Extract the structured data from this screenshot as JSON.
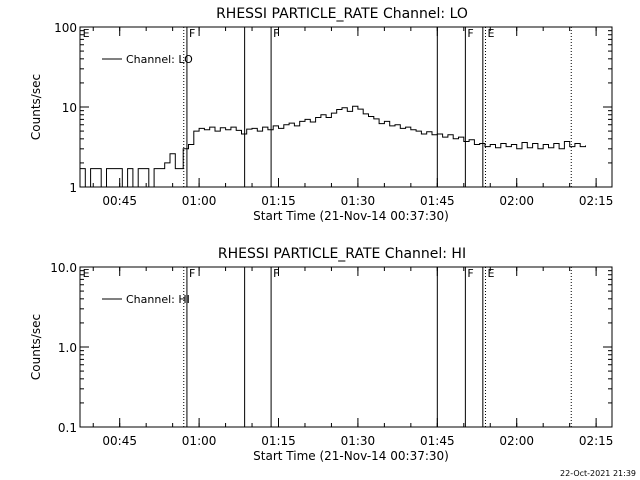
{
  "chart_data": [
    {
      "type": "line",
      "title": "RHESSI PARTICLE_RATE Channel: LO",
      "xlabel": "Start Time (21-Nov-14 00:37:30)",
      "ylabel": "Counts/sec",
      "y_scale": "log",
      "ylim": [
        1,
        100
      ],
      "xlim": [
        "00:37:30",
        "02:18:00"
      ],
      "yticks": [
        "1",
        "10",
        "100"
      ],
      "xticks": [
        "00:45",
        "01:00",
        "01:15",
        "01:30",
        "01:45",
        "02:00",
        "02:15"
      ],
      "legend": "top-left",
      "series": [
        {
          "name": "Channel: LO",
          "x": [
            "00:37:30",
            "00:38:30",
            "00:39:30",
            "00:40:30",
            "00:41:30",
            "00:42:30",
            "00:43:30",
            "00:44:30",
            "00:45:30",
            "00:46:30",
            "00:47:30",
            "00:48:30",
            "00:49:30",
            "00:50:30",
            "00:51:30",
            "00:52:30",
            "00:53:30",
            "00:54:30",
            "00:55:30",
            "00:56:30",
            "00:57:00",
            "00:58:00",
            "00:59:00",
            "01:00:00",
            "01:01:00",
            "01:02:00",
            "01:03:00",
            "01:04:00",
            "01:05:00",
            "01:06:00",
            "01:07:00",
            "01:08:00",
            "01:09:00",
            "01:10:00",
            "01:11:00",
            "01:12:00",
            "01:13:00",
            "01:14:00",
            "01:15:00",
            "01:16:00",
            "01:17:00",
            "01:18:00",
            "01:19:00",
            "01:20:00",
            "01:21:00",
            "01:22:00",
            "01:23:00",
            "01:24:00",
            "01:25:00",
            "01:26:00",
            "01:27:00",
            "01:28:00",
            "01:29:00",
            "01:30:00",
            "01:31:00",
            "01:32:00",
            "01:33:00",
            "01:34:00",
            "01:35:00",
            "01:36:00",
            "01:37:00",
            "01:38:00",
            "01:39:00",
            "01:40:00",
            "01:41:00",
            "01:42:00",
            "01:43:00",
            "01:44:00",
            "01:45:00",
            "01:46:00",
            "01:47:00",
            "01:48:00",
            "01:49:00",
            "01:50:00",
            "01:51:00",
            "01:52:00",
            "01:53:00",
            "01:54:00",
            "01:55:00",
            "01:56:00",
            "01:57:00",
            "01:58:00",
            "01:59:00",
            "02:00:00",
            "02:01:00",
            "02:02:00",
            "02:03:00",
            "02:04:00",
            "02:05:00",
            "02:06:00",
            "02:07:00",
            "02:08:00",
            "02:09:00",
            "02:10:00",
            "02:11:00",
            "02:12:00",
            "02:13:00"
          ],
          "values": [
            1.7,
            1.0,
            1.7,
            1.7,
            1.0,
            1.7,
            1.7,
            1.7,
            1.0,
            1.7,
            1.0,
            1.7,
            1.7,
            1.0,
            1.7,
            1.7,
            2.0,
            2.6,
            1.7,
            1.7,
            3.0,
            3.4,
            5.0,
            5.4,
            5.2,
            5.6,
            5.0,
            5.5,
            5.2,
            5.6,
            5.1,
            4.6,
            5.3,
            5.4,
            5.0,
            5.6,
            5.2,
            5.8,
            5.4,
            6.0,
            6.3,
            5.8,
            6.6,
            7.0,
            6.5,
            7.4,
            8.0,
            7.4,
            8.4,
            9.3,
            9.8,
            8.8,
            10.2,
            9.4,
            8.2,
            7.6,
            7.1,
            6.2,
            6.6,
            5.8,
            6.0,
            5.4,
            5.6,
            5.2,
            5.0,
            4.6,
            4.9,
            4.5,
            4.6,
            4.2,
            4.5,
            4.0,
            4.2,
            3.7,
            3.9,
            3.4,
            3.5,
            3.2,
            3.4,
            3.1,
            3.5,
            3.2,
            3.4,
            3.0,
            3.6,
            3.1,
            3.5,
            3.0,
            3.4,
            3.1,
            3.5,
            3.0,
            3.7,
            3.2,
            3.5,
            3.2,
            3.3
          ]
        }
      ],
      "flags": [
        "E",
        "F",
        "F",
        "F",
        "E"
      ]
    },
    {
      "type": "line",
      "title": "RHESSI PARTICLE_RATE Channel: HI",
      "xlabel": "Start Time (21-Nov-14 00:37:30)",
      "ylabel": "Counts/sec",
      "y_scale": "log",
      "ylim": [
        0.1,
        10.0
      ],
      "xlim": [
        "00:37:30",
        "02:18:00"
      ],
      "yticks": [
        "0.1",
        "1.0",
        "10.0"
      ],
      "xticks": [
        "00:45",
        "01:00",
        "01:15",
        "01:30",
        "01:45",
        "02:00",
        "02:15"
      ],
      "legend": "top-left",
      "series": [
        {
          "name": "Channel: HI",
          "x": [],
          "values": []
        }
      ],
      "flags": [
        "E",
        "F",
        "F",
        "F",
        "E"
      ]
    }
  ],
  "timestamp": "22-Oct-2021 21:39"
}
